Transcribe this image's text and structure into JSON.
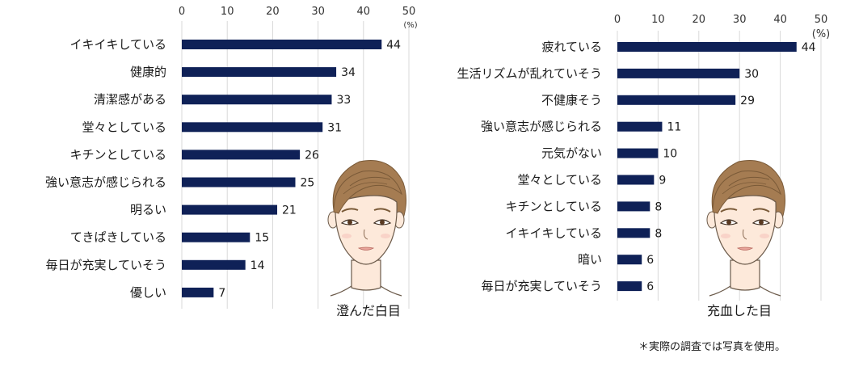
{
  "chart_data": [
    {
      "type": "bar",
      "orientation": "horizontal",
      "caption": "澄んだ白目",
      "unit": "(%)",
      "xlim": [
        0,
        50
      ],
      "ticks": [
        0,
        10,
        20,
        30,
        40,
        50
      ],
      "grid": true,
      "bar_color": "#0f2157",
      "categories": [
        "イキイキしている",
        "健康的",
        "清潔感がある",
        "堂々としている",
        "キチンとしている",
        "強い意志が感じられる",
        "明るい",
        "てきぱきしている",
        "毎日が充実していそう",
        "優しい"
      ],
      "values": [
        44,
        34,
        33,
        31,
        26,
        25,
        21,
        15,
        14,
        7
      ]
    },
    {
      "type": "bar",
      "orientation": "horizontal",
      "caption": "充血した目",
      "unit": "(%)",
      "xlim": [
        0,
        50
      ],
      "ticks": [
        0,
        10,
        20,
        30,
        40,
        50
      ],
      "grid": true,
      "bar_color": "#0f2157",
      "categories": [
        "疲れている",
        "生活リズムが乱れていそう",
        "不健康そう",
        "強い意志が感じられる",
        "元気がない",
        "堂々としている",
        "キチンとしている",
        "イキイキしている",
        "暗い",
        "毎日が充実していそう"
      ],
      "values": [
        44,
        30,
        29,
        11,
        10,
        9,
        8,
        8,
        6,
        6
      ]
    }
  ],
  "footnote": "＊実際の調査では写真を使用。",
  "illustration": {
    "icon": "woman-face-illustration",
    "hair_color": "#a57c52",
    "skin_color": "#fde9da"
  }
}
